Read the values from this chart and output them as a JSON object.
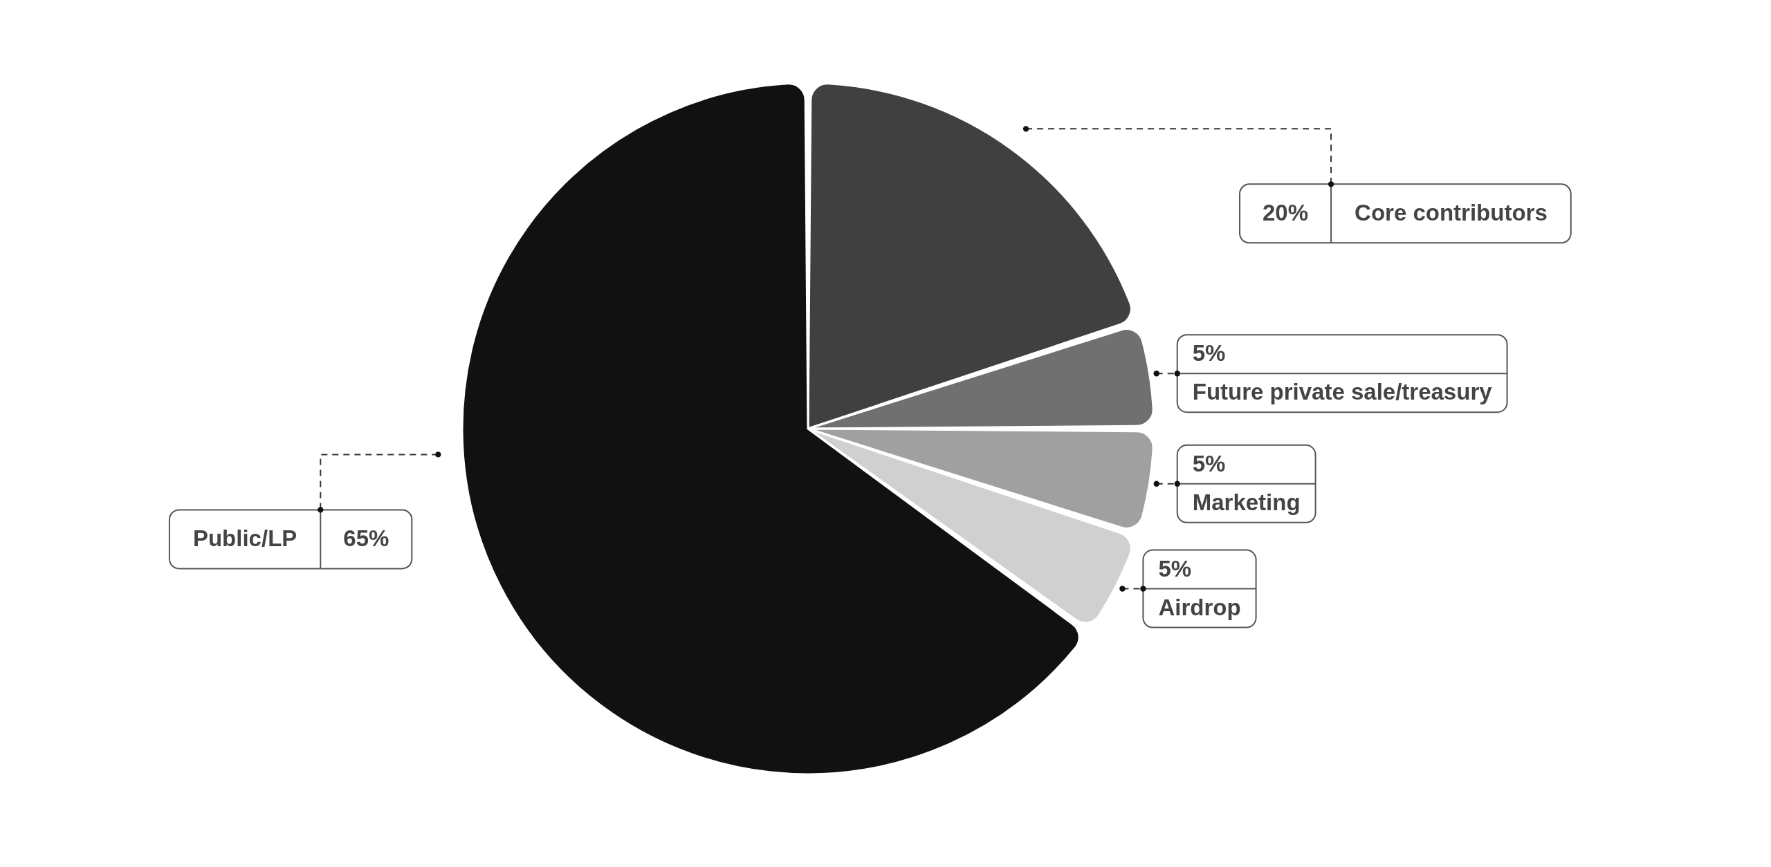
{
  "chart_data": {
    "type": "pie",
    "categories": [
      "Core contributors",
      "Future private sale/treasury",
      "Marketing",
      "Airdrop",
      "Public/LP"
    ],
    "values": [
      20,
      5,
      5,
      5,
      65
    ],
    "value_labels": [
      "20%",
      "5%",
      "5%",
      "5%",
      "65%"
    ],
    "colors": [
      "#404040",
      "#707070",
      "#a0a0a0",
      "#d0d0d0",
      "#111111"
    ]
  }
}
